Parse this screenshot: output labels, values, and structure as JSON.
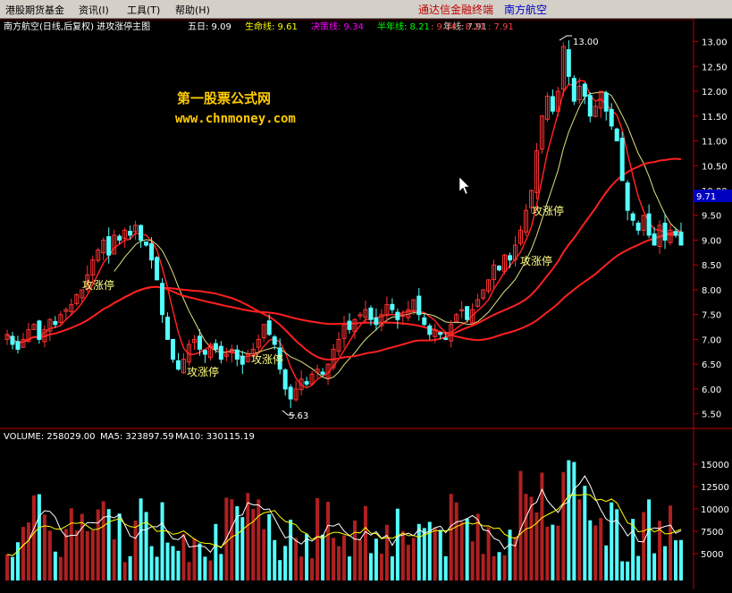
{
  "menu": {
    "items": [
      "港股期货基金",
      "资讯(I)",
      "工具(T)",
      "帮助(H)"
    ],
    "brand": "通达信金融终端",
    "stock": "南方航空"
  },
  "header": {
    "title": "南方航空(日线,后复权) 进攻涨停主图",
    "indicators": [
      {
        "label": "五日:",
        "value": "9.09",
        "color": "#ffffff"
      },
      {
        "label": "生命线:",
        "value": "9.61",
        "color": "#ffff00"
      },
      {
        "label": "决策线:",
        "value": "9.34",
        "color": "#ff00ff"
      },
      {
        "label": "半年线:",
        "value": "8.21",
        "color": "#00ff00"
      },
      {
        "label": "年线:",
        "value": "7.91",
        "color": "#cccccc"
      }
    ],
    "extra": ": 9.34 : 8.21 : 7.91"
  },
  "watermark": {
    "cn": "第一股票公式网",
    "url": "www.chnmoney.com"
  },
  "volume_header": {
    "volume": "VOLUME: 258029.00",
    "ma5": "MA5: 323897.59",
    "ma10": "MA10: 330115.19"
  },
  "price_tag": "9.71",
  "annotations": {
    "high": "13.00",
    "low": "5.63",
    "signals": [
      "攻涨停",
      "攻涨停",
      "攻涨停",
      "攻涨停",
      "攻涨停"
    ]
  },
  "colors": {
    "up": "#ff3232",
    "down": "#54ffff",
    "ma_red": "#ff2020",
    "ma_yellow": "#e0e080",
    "ma_purple": "#c040c0",
    "axis": "#c00000"
  },
  "chart_data": {
    "type": "candlestick",
    "price_axis": {
      "ticks": [
        5.5,
        6.0,
        6.5,
        7.0,
        7.5,
        8.0,
        8.5,
        9.0,
        9.5,
        10.0,
        10.5,
        11.0,
        11.5,
        12.0,
        12.5,
        13.0
      ],
      "ylim": [
        5.35,
        13.1
      ]
    },
    "volume_axis": {
      "ticks": [
        5000,
        7500,
        10000,
        12500,
        15000
      ],
      "ylim": [
        2000,
        17000
      ]
    },
    "close": [
      7.1,
      6.9,
      6.8,
      7.0,
      7.2,
      7.3,
      7.0,
      7.2,
      7.4,
      7.3,
      7.5,
      7.6,
      7.7,
      7.9,
      8.0,
      8.3,
      8.6,
      8.8,
      9.0,
      8.7,
      9.1,
      9.0,
      9.2,
      9.1,
      9.3,
      9.0,
      8.9,
      8.6,
      8.2,
      7.5,
      7.0,
      6.6,
      6.4,
      6.6,
      6.9,
      7.0,
      6.8,
      6.7,
      6.9,
      6.8,
      6.6,
      6.7,
      6.8,
      6.6,
      6.5,
      6.7,
      6.8,
      7.0,
      7.3,
      7.1,
      6.9,
      6.4,
      6.0,
      5.8,
      6.0,
      6.2,
      6.1,
      6.3,
      6.4,
      6.3,
      6.5,
      6.8,
      7.0,
      7.3,
      7.2,
      7.4,
      7.5,
      7.6,
      7.4,
      7.3,
      7.5,
      7.7,
      7.6,
      7.4,
      7.5,
      7.6,
      7.8,
      7.5,
      7.3,
      7.1,
      7.2,
      7.1,
      7.0,
      7.3,
      7.5,
      7.6,
      7.4,
      7.6,
      7.8,
      8.0,
      8.2,
      8.5,
      8.4,
      8.7,
      8.6,
      8.9,
      9.2,
      9.6,
      10.0,
      10.8,
      11.5,
      11.9,
      11.6,
      12.0,
      12.9,
      12.3,
      11.8,
      12.1,
      11.9,
      11.5,
      11.7,
      12.0,
      11.6,
      11.3,
      11.0,
      10.2,
      9.6,
      9.4,
      9.2,
      9.5,
      9.1,
      8.9,
      9.3,
      9.0,
      9.2,
      9.1,
      8.9
    ]
  }
}
